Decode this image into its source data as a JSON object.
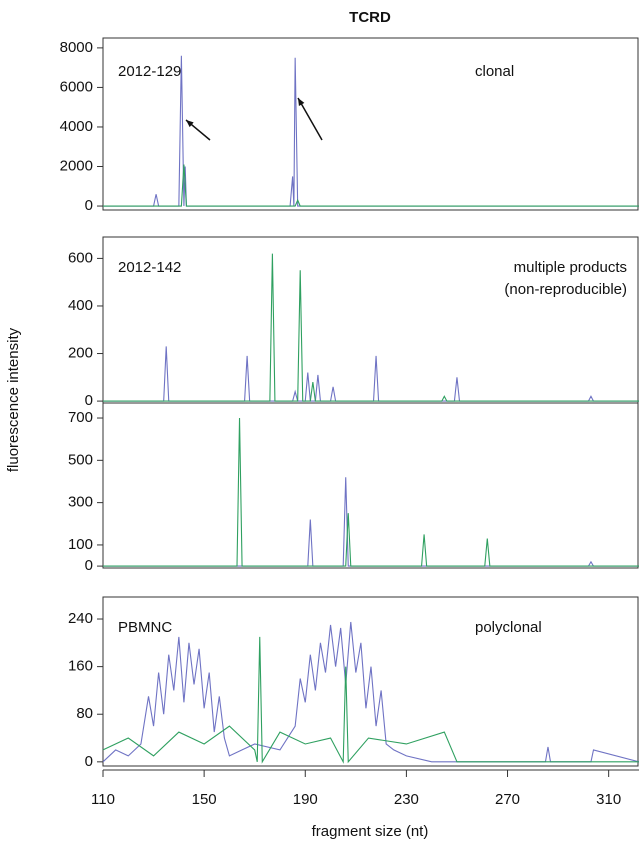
{
  "chart_data": [
    {
      "type": "line",
      "title": "TCRD",
      "annotations": [
        "2012-129",
        "clonal"
      ],
      "xlim": [
        110,
        322
      ],
      "ylim": [
        -200,
        8500
      ],
      "yticks": [
        0,
        2000,
        4000,
        6000,
        8000
      ],
      "series": [
        {
          "color": "#6f73c4",
          "x": [
            110,
            130,
            131,
            132,
            140,
            141,
            142,
            142.5,
            143,
            184,
            185,
            185.5,
            186,
            187,
            322
          ],
          "values": [
            0,
            0,
            600,
            0,
            0,
            7600,
            0,
            2000,
            0,
            0,
            1500,
            0,
            7500,
            0,
            0
          ]
        },
        {
          "color": "#2fa060",
          "x": [
            110,
            141,
            142,
            143,
            186,
            187,
            188,
            322
          ],
          "values": [
            0,
            0,
            2100,
            0,
            0,
            300,
            0,
            0
          ]
        }
      ]
    },
    {
      "type": "line",
      "annotations": [
        "2012-142",
        "multiple products",
        "(non-reproducible)"
      ],
      "ylabel": "fluorescence intensity",
      "xlim": [
        110,
        322
      ],
      "ylim": [
        -8,
        690
      ],
      "yticks": [
        0,
        200,
        400,
        600
      ],
      "series": [
        {
          "color": "#6f73c4",
          "x": [
            110,
            134,
            135,
            136,
            166,
            167,
            168,
            185,
            186,
            187,
            190,
            191,
            192,
            194,
            195,
            196,
            200,
            201,
            202,
            217,
            218,
            219,
            249,
            250,
            251,
            302,
            303,
            304,
            322
          ],
          "values": [
            0,
            0,
            230,
            0,
            0,
            190,
            0,
            0,
            40,
            0,
            0,
            120,
            0,
            0,
            110,
            0,
            0,
            60,
            0,
            0,
            190,
            0,
            0,
            100,
            0,
            0,
            20,
            0,
            0
          ]
        },
        {
          "color": "#2fa060",
          "x": [
            110,
            176,
            177,
            178,
            187,
            188,
            189,
            192,
            193,
            194,
            244,
            245,
            246,
            322
          ],
          "values": [
            0,
            0,
            620,
            0,
            0,
            550,
            0,
            0,
            80,
            0,
            0,
            20,
            0,
            0
          ]
        }
      ]
    },
    {
      "type": "line",
      "xlim": [
        110,
        322
      ],
      "ylim": [
        -9,
        771
      ],
      "yticks": [
        0,
        100,
        300,
        500,
        700
      ],
      "series": [
        {
          "color": "#6f73c4",
          "x": [
            110,
            191,
            192,
            193,
            205,
            206,
            207,
            302,
            303,
            304,
            322
          ],
          "values": [
            0,
            0,
            220,
            0,
            0,
            420,
            0,
            0,
            20,
            0,
            0
          ]
        },
        {
          "color": "#2fa060",
          "x": [
            110,
            163,
            164,
            165,
            206,
            207,
            208,
            236,
            237,
            238,
            261,
            262,
            263,
            322
          ],
          "values": [
            0,
            0,
            700,
            0,
            0,
            250,
            0,
            0,
            150,
            0,
            0,
            130,
            0,
            0
          ]
        }
      ]
    },
    {
      "type": "line",
      "annotations": [
        "PBMNC",
        "polyclonal"
      ],
      "xlabel": "fragment size (nt)",
      "xlim": [
        110,
        322
      ],
      "ylim": [
        -7,
        277
      ],
      "yticks": [
        0,
        80,
        160,
        240
      ],
      "xticks": [
        110,
        150,
        190,
        230,
        270,
        310
      ],
      "series": [
        {
          "color": "#6f73c4",
          "x": [
            110,
            115,
            120,
            125,
            128,
            130,
            132,
            134,
            136,
            138,
            140,
            142,
            144,
            146,
            148,
            150,
            152,
            154,
            156,
            158,
            160,
            165,
            170,
            180,
            186,
            188,
            190,
            192,
            194,
            196,
            198,
            200,
            202,
            204,
            206,
            208,
            210,
            212,
            214,
            216,
            218,
            220,
            222,
            225,
            230,
            240,
            285,
            286,
            287,
            300,
            303,
            304,
            322
          ],
          "values": [
            0,
            20,
            10,
            30,
            110,
            60,
            150,
            80,
            180,
            120,
            210,
            100,
            200,
            130,
            190,
            90,
            150,
            50,
            110,
            40,
            10,
            20,
            30,
            20,
            60,
            140,
            100,
            180,
            120,
            200,
            150,
            230,
            160,
            225,
            130,
            235,
            150,
            200,
            90,
            160,
            60,
            120,
            30,
            20,
            10,
            0,
            0,
            25,
            0,
            0,
            0,
            20,
            0
          ]
        },
        {
          "color": "#2fa060",
          "x": [
            110,
            120,
            130,
            140,
            150,
            160,
            170,
            171,
            172,
            173,
            180,
            190,
            200,
            205,
            206,
            207,
            215,
            230,
            245,
            250,
            322
          ],
          "values": [
            20,
            40,
            10,
            50,
            30,
            60,
            20,
            0,
            210,
            0,
            50,
            30,
            40,
            0,
            160,
            0,
            40,
            30,
            50,
            0,
            0
          ]
        }
      ]
    }
  ]
}
